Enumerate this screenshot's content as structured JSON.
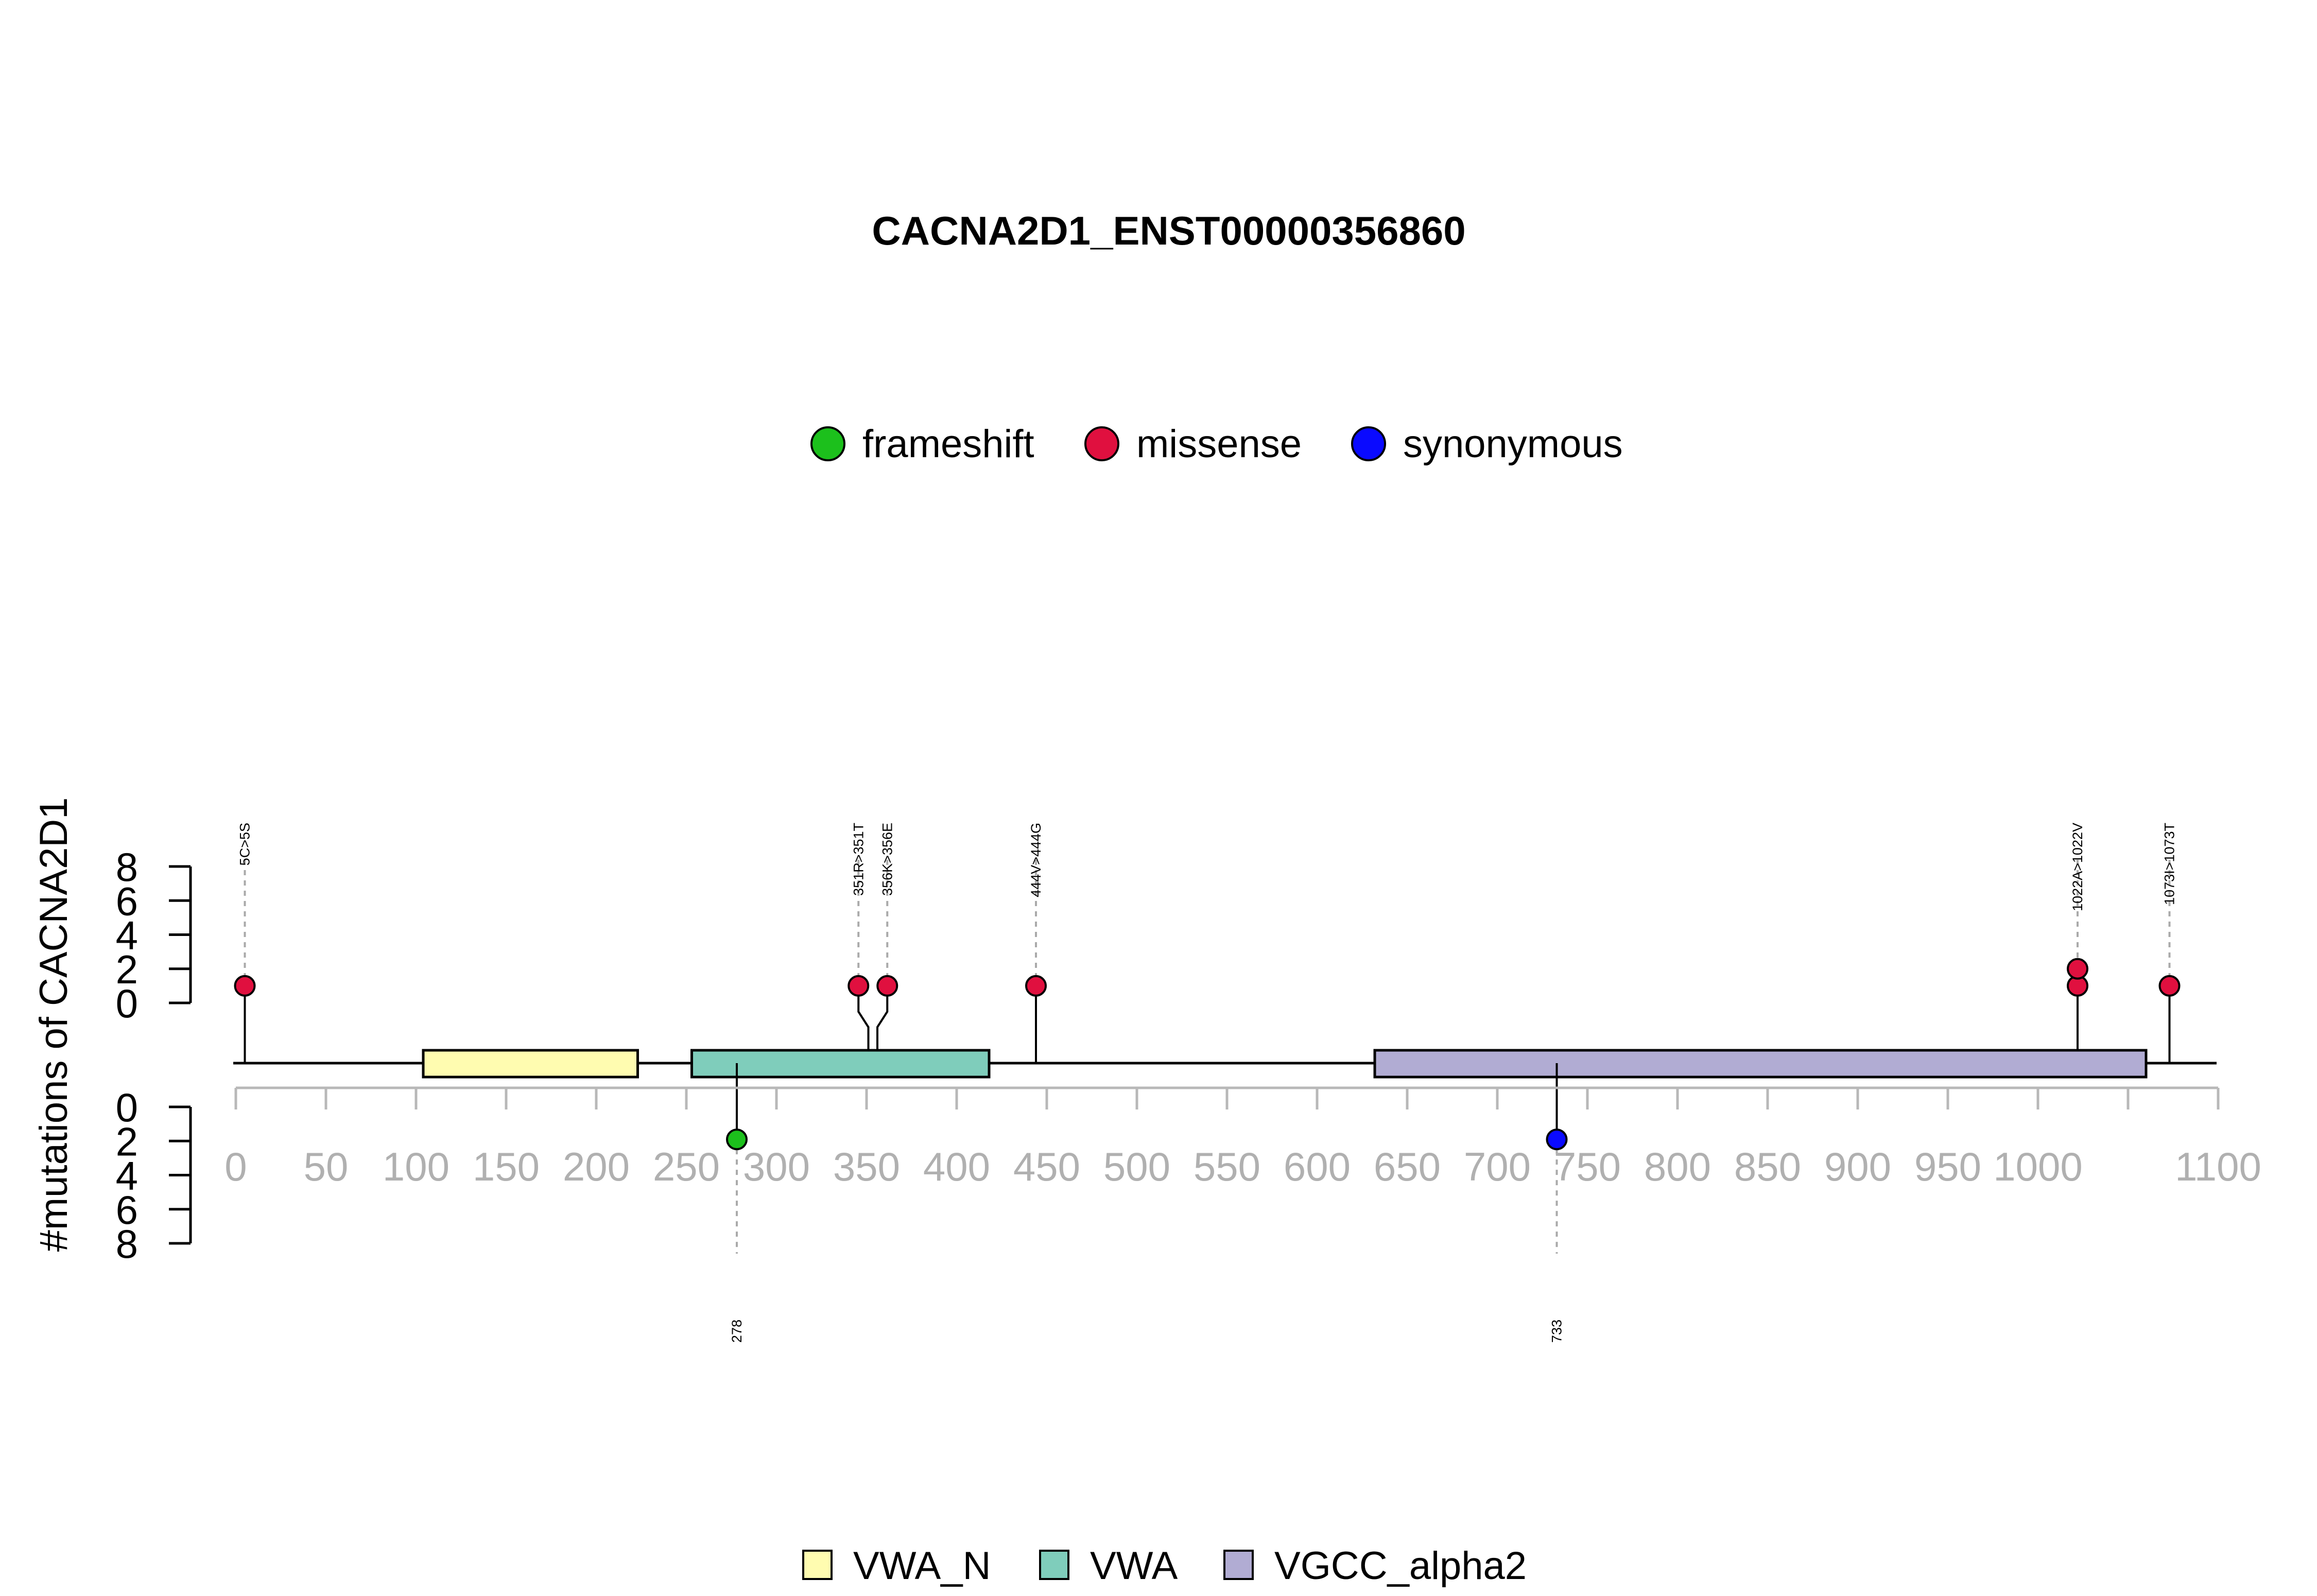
{
  "chart_data": {
    "type": "lollipop",
    "title": "CACNA2D1_ENST00000356860",
    "ylabel": "#mutations of CACNA2D1",
    "xlim": [
      0,
      1100
    ],
    "x_ticks": [
      0,
      50,
      100,
      150,
      200,
      250,
      300,
      350,
      400,
      450,
      500,
      550,
      600,
      650,
      700,
      750,
      800,
      850,
      900,
      950,
      1000,
      1100
    ],
    "x_tick_labels": [
      "0",
      "50",
      "100",
      "150",
      "200",
      "250",
      "300",
      "350",
      "400",
      "450",
      "500",
      "550",
      "600",
      "650",
      "700",
      "750",
      "800",
      "850",
      "900",
      "950",
      "1000",
      "1100"
    ],
    "x_minor_ticks": [
      1050
    ],
    "upper_ylim": [
      0,
      8
    ],
    "upper_y_ticks": [
      "0",
      "2",
      "4",
      "6",
      "8"
    ],
    "lower_ylim": [
      0,
      8
    ],
    "lower_y_ticks": [
      "0",
      "2",
      "4",
      "6",
      "8"
    ],
    "mutation_legend": [
      {
        "name": "frameshift",
        "color": "#1cc01c"
      },
      {
        "name": "missense",
        "color": "#e0103f"
      },
      {
        "name": "synonymous",
        "color": "#0a0aff"
      }
    ],
    "domain_legend": [
      {
        "name": "VWA_N",
        "color": "#fffcb0"
      },
      {
        "name": "VWA",
        "color": "#7fcdbb"
      },
      {
        "name": "VGCC_alpha2",
        "color": "#b1acd3"
      }
    ],
    "domains": [
      {
        "name": "VWA_N",
        "start": 104,
        "end": 223,
        "color": "#fffcb0"
      },
      {
        "name": "VWA",
        "start": 253,
        "end": 418,
        "color": "#7fcdbb"
      },
      {
        "name": "VGCC_alpha2",
        "start": 632,
        "end": 1060,
        "color": "#b1acd3"
      }
    ],
    "upper_mutations": [
      {
        "position": 5,
        "label": "5C>5S",
        "type": "missense",
        "count": 1
      },
      {
        "position": 351,
        "label": "351R>351T",
        "type": "missense",
        "count": 1
      },
      {
        "position": 356,
        "label": "356K>356E",
        "type": "missense",
        "count": 1
      },
      {
        "position": 444,
        "label": "444V>444G",
        "type": "missense",
        "count": 1
      },
      {
        "position": 1022,
        "label": "1022A>1022V",
        "type": "missense",
        "count": 2
      },
      {
        "position": 1073,
        "label": "1073I>1073T",
        "type": "missense",
        "count": 1
      }
    ],
    "lower_mutations": [
      {
        "position": 278,
        "label": "278",
        "type": "frameshift",
        "count": 1
      },
      {
        "position": 733,
        "label": "733",
        "type": "synonymous",
        "count": 1
      }
    ]
  }
}
